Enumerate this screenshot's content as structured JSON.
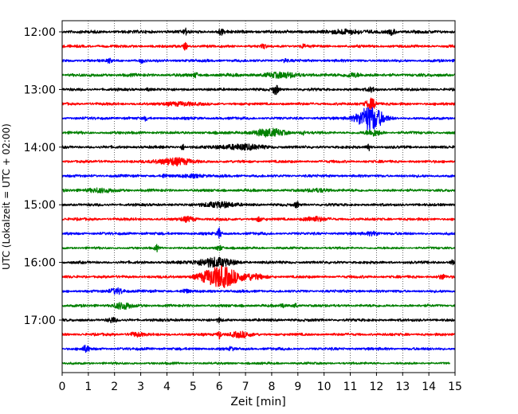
{
  "chart_data": {
    "type": "line",
    "xlabel": "Zeit  [min]",
    "ylabel": "UTC (Lokalzeit = UTC + 02:00)",
    "xlim": [
      0,
      15
    ],
    "x_ticks": [
      "0",
      "1",
      "2",
      "3",
      "4",
      "5",
      "6",
      "7",
      "8",
      "9",
      "10",
      "11",
      "12",
      "13",
      "14",
      "15"
    ],
    "y_ticks": [
      {
        "label": "12:00",
        "trace": 0
      },
      {
        "label": "13:00",
        "trace": 4
      },
      {
        "label": "14:00",
        "trace": 8
      },
      {
        "label": "15:00",
        "trace": 12
      },
      {
        "label": "16:00",
        "trace": 16
      },
      {
        "label": "17:00",
        "trace": 20
      }
    ],
    "grid": {
      "vertical": true,
      "style": "dotted"
    },
    "trace_interval_min": 15,
    "colors": [
      "#000000",
      "#ff0000",
      "#0000ff",
      "#008000"
    ],
    "traces": [
      {
        "start": "12:00",
        "noise": 0.35,
        "events": [
          {
            "t": 4.7,
            "amp": 0.9,
            "dur": 0.05
          },
          {
            "t": 6.05,
            "amp": 0.8,
            "dur": 0.08
          },
          {
            "t": 10.9,
            "amp": 0.6,
            "dur": 0.4
          },
          {
            "t": 12.6,
            "amp": 0.7,
            "dur": 0.1
          }
        ]
      },
      {
        "start": "12:15",
        "noise": 0.3,
        "events": [
          {
            "t": 4.7,
            "amp": 1.0,
            "dur": 0.05
          },
          {
            "t": 7.7,
            "amp": 0.7,
            "dur": 0.05
          },
          {
            "t": 9.2,
            "amp": 0.6,
            "dur": 0.05
          }
        ]
      },
      {
        "start": "12:30",
        "noise": 0.3,
        "events": [
          {
            "t": 1.8,
            "amp": 0.7,
            "dur": 0.05
          },
          {
            "t": 3.05,
            "amp": 0.6,
            "dur": 0.05
          },
          {
            "t": 8.5,
            "amp": 0.6,
            "dur": 0.05
          }
        ]
      },
      {
        "start": "12:45",
        "noise": 0.35,
        "events": [
          {
            "t": 5.1,
            "amp": 0.7,
            "dur": 0.05
          },
          {
            "t": 8.4,
            "amp": 0.6,
            "dur": 0.5
          },
          {
            "t": 11.1,
            "amp": 0.6,
            "dur": 0.2
          }
        ]
      },
      {
        "start": "13:00",
        "noise": 0.3,
        "events": [
          {
            "t": 3.3,
            "amp": 0.5,
            "dur": 0.05
          },
          {
            "t": 8.15,
            "amp": 1.4,
            "dur": 0.08
          },
          {
            "t": 11.8,
            "amp": 0.6,
            "dur": 0.1
          }
        ]
      },
      {
        "start": "13:15",
        "noise": 0.3,
        "events": [
          {
            "t": 4.5,
            "amp": 0.5,
            "dur": 0.4
          },
          {
            "t": 11.8,
            "amp": 1.5,
            "dur": 0.15
          }
        ]
      },
      {
        "start": "13:30",
        "noise": 0.3,
        "events": [
          {
            "t": 3.2,
            "amp": 0.5,
            "dur": 0.05
          },
          {
            "t": 11.75,
            "amp": 3.5,
            "dur": 0.35
          }
        ]
      },
      {
        "start": "13:45",
        "noise": 0.3,
        "events": [
          {
            "t": 7.9,
            "amp": 1.0,
            "dur": 0.45
          },
          {
            "t": 9.2,
            "amp": 0.6,
            "dur": 0.05
          },
          {
            "t": 11.9,
            "amp": 0.8,
            "dur": 0.2
          }
        ]
      },
      {
        "start": "14:00",
        "noise": 0.3,
        "events": [
          {
            "t": 4.6,
            "amp": 0.8,
            "dur": 0.05
          },
          {
            "t": 6.8,
            "amp": 0.7,
            "dur": 0.6
          },
          {
            "t": 11.7,
            "amp": 1.3,
            "dur": 0.05
          }
        ]
      },
      {
        "start": "14:15",
        "noise": 0.3,
        "events": [
          {
            "t": 4.25,
            "amp": 1.0,
            "dur": 0.45
          }
        ]
      },
      {
        "start": "14:30",
        "noise": 0.3,
        "events": [
          {
            "t": 3.9,
            "amp": 0.6,
            "dur": 0.05
          },
          {
            "t": 5.0,
            "amp": 0.4,
            "dur": 0.3
          }
        ]
      },
      {
        "start": "14:45",
        "noise": 0.3,
        "events": [
          {
            "t": 1.4,
            "amp": 0.5,
            "dur": 0.4
          },
          {
            "t": 9.8,
            "amp": 0.4,
            "dur": 0.3
          }
        ]
      },
      {
        "start": "15:00",
        "noise": 0.3,
        "events": [
          {
            "t": 6.0,
            "amp": 0.8,
            "dur": 0.4
          },
          {
            "t": 8.95,
            "amp": 1.0,
            "dur": 0.05
          }
        ]
      },
      {
        "start": "15:15",
        "noise": 0.3,
        "events": [
          {
            "t": 4.8,
            "amp": 0.6,
            "dur": 0.2
          },
          {
            "t": 7.5,
            "amp": 0.5,
            "dur": 0.1
          },
          {
            "t": 9.6,
            "amp": 0.6,
            "dur": 0.3
          }
        ]
      },
      {
        "start": "15:30",
        "noise": 0.3,
        "events": [
          {
            "t": 6.0,
            "amp": 1.5,
            "dur": 0.05
          },
          {
            "t": 11.9,
            "amp": 0.5,
            "dur": 0.2
          }
        ]
      },
      {
        "start": "15:45",
        "noise": 0.25,
        "events": [
          {
            "t": 3.6,
            "amp": 0.9,
            "dur": 0.05
          },
          {
            "t": 6.0,
            "amp": 0.7,
            "dur": 0.1
          }
        ]
      },
      {
        "start": "16:00",
        "noise": 0.3,
        "events": [
          {
            "t": 5.8,
            "amp": 1.3,
            "dur": 0.5
          },
          {
            "t": 14.9,
            "amp": 0.6,
            "dur": 0.05
          }
        ]
      },
      {
        "start": "16:15",
        "noise": 0.3,
        "events": [
          {
            "t": 6.05,
            "amp": 3.0,
            "dur": 0.5
          },
          {
            "t": 7.3,
            "amp": 0.6,
            "dur": 0.3
          },
          {
            "t": 14.5,
            "amp": 0.6,
            "dur": 0.1
          }
        ]
      },
      {
        "start": "16:30",
        "noise": 0.3,
        "events": [
          {
            "t": 2.1,
            "amp": 0.8,
            "dur": 0.2
          },
          {
            "t": 4.7,
            "amp": 0.5,
            "dur": 0.1
          }
        ]
      },
      {
        "start": "16:45",
        "noise": 0.3,
        "events": [
          {
            "t": 2.3,
            "amp": 0.9,
            "dur": 0.25
          },
          {
            "t": 8.4,
            "amp": 0.6,
            "dur": 0.05
          },
          {
            "t": 8.9,
            "amp": 0.6,
            "dur": 0.05
          }
        ]
      },
      {
        "start": "17:00",
        "noise": 0.3,
        "events": [
          {
            "t": 1.9,
            "amp": 0.7,
            "dur": 0.1
          },
          {
            "t": 6.0,
            "amp": 0.6,
            "dur": 0.05
          }
        ]
      },
      {
        "start": "17:15",
        "noise": 0.3,
        "events": [
          {
            "t": 2.8,
            "amp": 0.5,
            "dur": 0.2
          },
          {
            "t": 6.0,
            "amp": 1.3,
            "dur": 0.05
          },
          {
            "t": 6.8,
            "amp": 0.7,
            "dur": 0.3
          }
        ]
      },
      {
        "start": "17:30",
        "noise": 0.3,
        "events": [
          {
            "t": 0.9,
            "amp": 0.8,
            "dur": 0.1
          },
          {
            "t": 6.45,
            "amp": 0.5,
            "dur": 0.05
          }
        ]
      },
      {
        "start": "17:45",
        "noise": 0.25,
        "end": 14.8,
        "events": []
      }
    ]
  }
}
